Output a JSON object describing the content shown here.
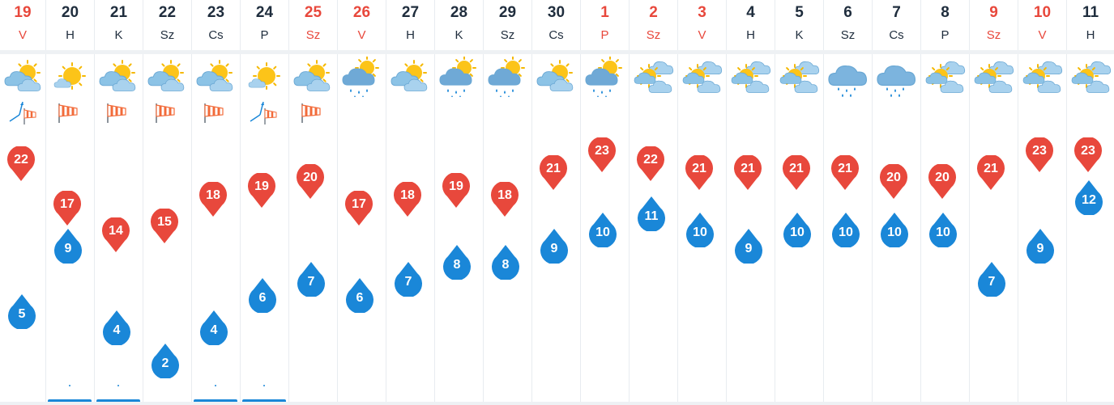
{
  "colors": {
    "weekend_red": "#e8483c",
    "max_pin": "#e8483c",
    "min_drop": "#1a87d8",
    "text_dark": "#1f2d3d"
  },
  "days": [
    {
      "day": "19",
      "name": "V",
      "red": true,
      "weather": "partly-cloudy-icon",
      "wind": "windsock-weathervane-icon",
      "max": "22",
      "min": "5"
    },
    {
      "day": "20",
      "name": "H",
      "red": false,
      "weather": "sunny-icon",
      "wind": "windsock-icon",
      "max": "17",
      "min": "9",
      "indicator": "dot-bar"
    },
    {
      "day": "21",
      "name": "K",
      "red": false,
      "weather": "partly-cloudy-icon",
      "wind": "windsock-icon",
      "max": "14",
      "min": "4",
      "indicator": "dot-bar"
    },
    {
      "day": "22",
      "name": "Sz",
      "red": false,
      "weather": "partly-cloudy-icon",
      "wind": "windsock-icon",
      "max": "15",
      "min": "2"
    },
    {
      "day": "23",
      "name": "Cs",
      "red": false,
      "weather": "partly-cloudy-icon",
      "wind": "windsock-icon",
      "max": "18",
      "min": "4",
      "indicator": "dot-bar"
    },
    {
      "day": "24",
      "name": "P",
      "red": false,
      "weather": "sunny-icon",
      "wind": "windsock-weathervane-icon",
      "max": "19",
      "min": "6",
      "indicator": "dot-bar"
    },
    {
      "day": "25",
      "name": "Sz",
      "red": true,
      "weather": "partly-cloudy-icon",
      "wind": "windsock-icon",
      "max": "20",
      "min": "7"
    },
    {
      "day": "26",
      "name": "V",
      "red": true,
      "weather": "sun-cloud-rain-icon",
      "max": "17",
      "min": "6"
    },
    {
      "day": "27",
      "name": "H",
      "red": false,
      "weather": "partly-cloudy-icon",
      "max": "18",
      "min": "7"
    },
    {
      "day": "28",
      "name": "K",
      "red": false,
      "weather": "sun-cloud-rain-icon",
      "max": "19",
      "min": "8"
    },
    {
      "day": "29",
      "name": "Sz",
      "red": false,
      "weather": "sun-cloud-rain-icon",
      "max": "18",
      "min": "8"
    },
    {
      "day": "30",
      "name": "Cs",
      "red": false,
      "weather": "partly-cloudy-icon",
      "max": "21",
      "min": "9"
    },
    {
      "day": "1",
      "name": "P",
      "red": true,
      "weather": "sun-cloud-rain-icon",
      "max": "23",
      "min": "10"
    },
    {
      "day": "2",
      "name": "Sz",
      "red": true,
      "weather": "sun-clouds-icon",
      "max": "22",
      "min": "11"
    },
    {
      "day": "3",
      "name": "V",
      "red": true,
      "weather": "sun-clouds-icon",
      "max": "21",
      "min": "10"
    },
    {
      "day": "4",
      "name": "H",
      "red": false,
      "weather": "sun-clouds-icon",
      "max": "21",
      "min": "9"
    },
    {
      "day": "5",
      "name": "K",
      "red": false,
      "weather": "sun-clouds-icon",
      "max": "21",
      "min": "10"
    },
    {
      "day": "6",
      "name": "Sz",
      "red": false,
      "weather": "cloud-rain-icon",
      "max": "21",
      "min": "10"
    },
    {
      "day": "7",
      "name": "Cs",
      "red": false,
      "weather": "cloud-rain-icon",
      "max": "20",
      "min": "10"
    },
    {
      "day": "8",
      "name": "P",
      "red": false,
      "weather": "sun-clouds-icon",
      "max": "20",
      "min": "10"
    },
    {
      "day": "9",
      "name": "Sz",
      "red": true,
      "weather": "sun-clouds-icon",
      "max": "21",
      "min": "7"
    },
    {
      "day": "10",
      "name": "V",
      "red": true,
      "weather": "sun-clouds-icon",
      "max": "23",
      "min": "9"
    },
    {
      "day": "11",
      "name": "H",
      "red": false,
      "weather": "sun-clouds-icon",
      "max": "23",
      "min": "12"
    }
  ]
}
